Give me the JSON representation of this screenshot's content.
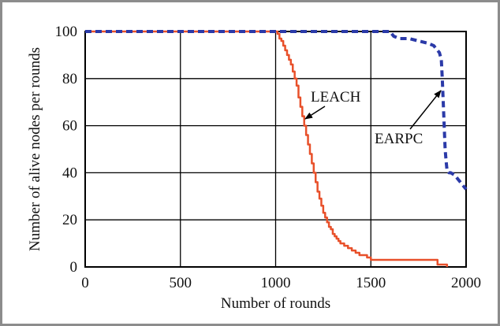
{
  "chart_data": {
    "type": "line",
    "title": "",
    "xlabel": "Number of rounds",
    "ylabel": "Number of alive nodes per rounds",
    "xlim": [
      0,
      2000
    ],
    "ylim": [
      0,
      100
    ],
    "xticks": [
      0,
      500,
      1000,
      1500,
      2000
    ],
    "yticks": [
      0,
      20,
      40,
      60,
      80,
      100
    ],
    "grid": true,
    "legend": "none",
    "series": [
      {
        "name": "LEACH",
        "color": "#e8502a",
        "style": "solid",
        "x": [
          0,
          1000,
          1010,
          1020,
          1030,
          1040,
          1050,
          1060,
          1070,
          1080,
          1090,
          1100,
          1110,
          1120,
          1130,
          1140,
          1150,
          1160,
          1170,
          1180,
          1190,
          1200,
          1210,
          1220,
          1230,
          1240,
          1250,
          1260,
          1270,
          1280,
          1290,
          1300,
          1310,
          1320,
          1330,
          1340,
          1360,
          1380,
          1400,
          1420,
          1440,
          1460,
          1480,
          1500,
          1550,
          1600,
          1700,
          1800,
          1850,
          1880,
          1900
        ],
        "y": [
          100,
          100,
          99,
          97,
          96,
          94,
          92,
          90,
          88,
          86,
          83,
          80,
          77,
          72,
          68,
          64,
          60,
          56,
          52,
          48,
          44,
          40,
          36,
          32,
          29,
          26,
          23,
          21,
          19,
          17,
          16,
          14,
          13,
          12,
          11,
          10,
          9,
          8,
          7,
          6,
          5,
          5,
          4,
          3,
          3,
          3,
          3,
          3,
          1,
          1,
          0
        ]
      },
      {
        "name": "EARPC",
        "color": "#2b3aa8",
        "style": "dashed",
        "x": [
          0,
          1600,
          1610,
          1620,
          1650,
          1700,
          1750,
          1800,
          1830,
          1850,
          1860,
          1870,
          1875,
          1880,
          1885,
          1890,
          1895,
          1900,
          1910,
          1920,
          1940,
          1950,
          1960,
          1980,
          2000
        ],
        "y": [
          100,
          100,
          99,
          98,
          97,
          97,
          96,
          95,
          94,
          92,
          91,
          88,
          80,
          70,
          60,
          50,
          45,
          41,
          40,
          40,
          39,
          38,
          37,
          35,
          33
        ]
      }
    ],
    "annotations": [
      {
        "text": "LEACH",
        "x": 1180,
        "y": 66
      },
      {
        "text": "EARPC",
        "x": 1880,
        "y": 76
      }
    ]
  }
}
